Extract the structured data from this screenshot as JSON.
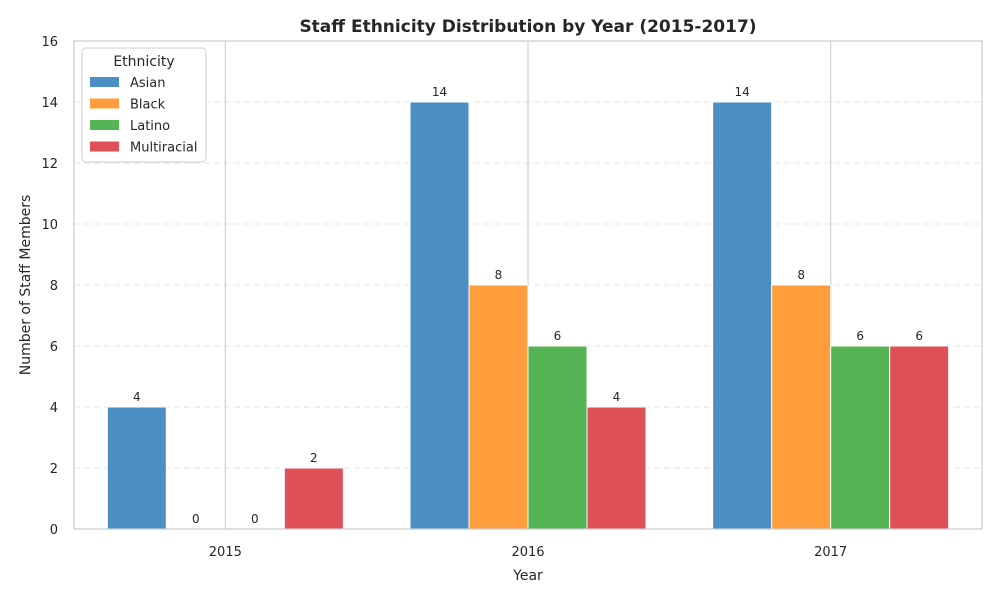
{
  "chart_data": {
    "type": "bar",
    "title": "Staff Ethnicity Distribution by Year (2015-2017)",
    "xlabel": "Year",
    "ylabel": "Number of Staff Members",
    "categories": [
      "2015",
      "2016",
      "2017"
    ],
    "ylim": [
      0,
      16
    ],
    "yticks": [
      "0",
      "2",
      "4",
      "6",
      "8",
      "10",
      "12",
      "14",
      "16"
    ],
    "grid": true,
    "legend": {
      "title": "Ethnicity",
      "position": "top-left"
    },
    "series": [
      {
        "name": "Asian",
        "color": "#2b7bba",
        "values": [
          4,
          14,
          14
        ]
      },
      {
        "name": "Black",
        "color": "#ff8c1a",
        "values": [
          0,
          8,
          8
        ]
      },
      {
        "name": "Latino",
        "color": "#37a837",
        "values": [
          0,
          6,
          6
        ]
      },
      {
        "name": "Multiracial",
        "color": "#d9333a",
        "values": [
          2,
          4,
          6
        ]
      }
    ]
  }
}
